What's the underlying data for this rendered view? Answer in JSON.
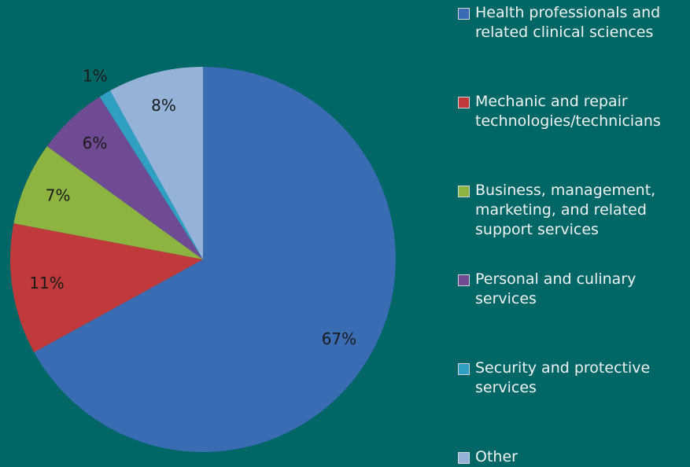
{
  "chart_data": {
    "type": "pie",
    "categories": [
      "Health professionals and related clinical sciences",
      "Mechanic and repair technologies/technicians",
      "Business, management, marketing, and related support services",
      "Personal and culinary services",
      "Security and protective services",
      "Other"
    ],
    "values": [
      67,
      11,
      7,
      6,
      1,
      8
    ],
    "value_labels": [
      "67%",
      "11%",
      "7%",
      "6%",
      "1%",
      "8%"
    ],
    "colors": [
      "#3a6cb4",
      "#c0393b",
      "#8db441",
      "#6e4b93",
      "#2f9fc2",
      "#95b2d8"
    ],
    "legend": "right"
  }
}
